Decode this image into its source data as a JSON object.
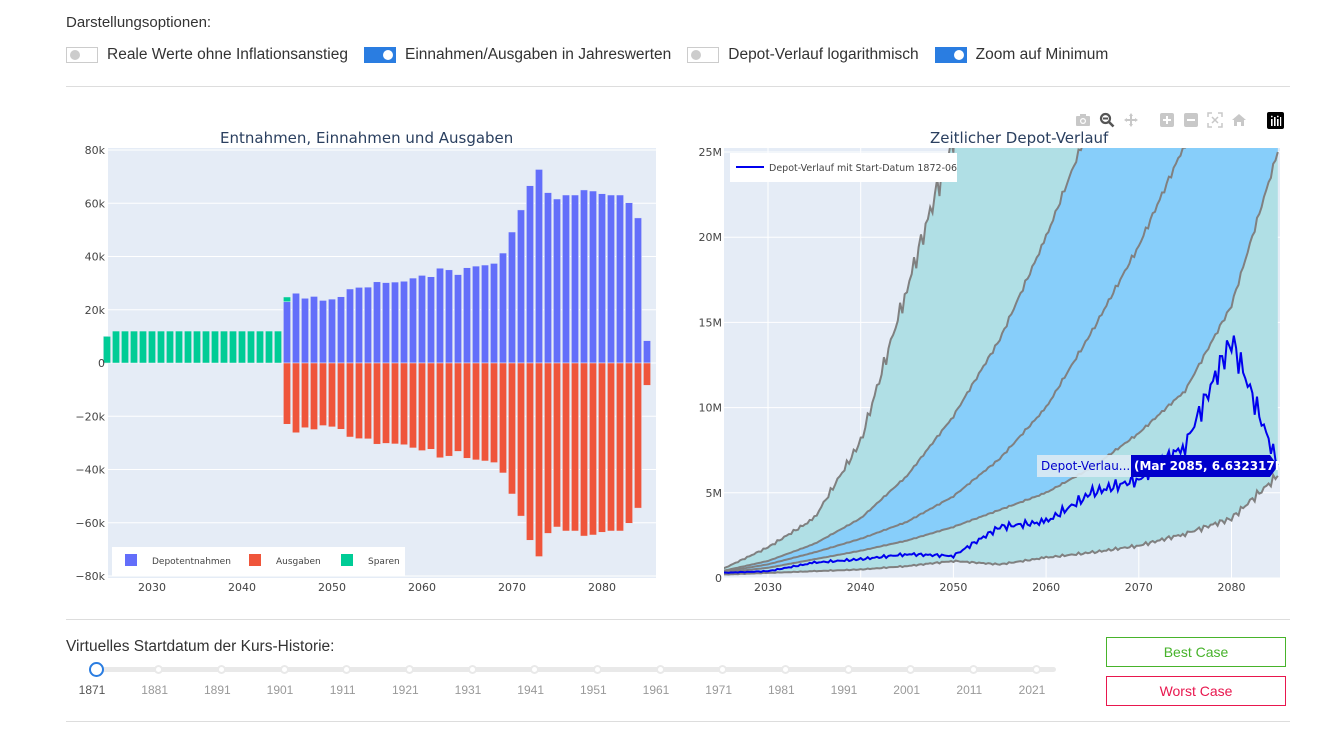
{
  "options": {
    "title": "Darstellungsoptionen:",
    "toggles": [
      {
        "label": "Reale Werte ohne Inflationsanstieg",
        "on": false
      },
      {
        "label": "Einnahmen/Ausgaben in Jahreswerten",
        "on": true
      },
      {
        "label": "Depot-Verlauf logarithmisch",
        "on": false
      },
      {
        "label": "Zoom auf Minimum",
        "on": true
      }
    ]
  },
  "modebar": [
    "camera-icon",
    "zoom-icon",
    "pan-icon",
    "zoom-in-icon",
    "zoom-out-icon",
    "autoscale-icon",
    "home-icon",
    "plotly-logo-icon"
  ],
  "chart_data": [
    {
      "type": "bar",
      "title": "Entnahmen, Einnahmen und Ausgaben",
      "xlabel": "",
      "ylabel": "",
      "ylim": [
        -80000,
        80000
      ],
      "yticks": [
        80000,
        60000,
        40000,
        20000,
        0,
        -20000,
        -40000,
        -60000,
        -80000
      ],
      "ytick_labels": [
        "80k",
        "60k",
        "40k",
        "20k",
        "0",
        "−20k",
        "−40k",
        "−60k",
        "−80k"
      ],
      "xlim": [
        2024.6,
        2085.5
      ],
      "xticks": [
        2030,
        2040,
        2050,
        2060,
        2070,
        2080
      ],
      "xtick_labels": [
        "2030",
        "2040",
        "2050",
        "2060",
        "2070",
        "2080"
      ],
      "legend": {
        "position": "bottom-left",
        "entries": [
          "Depotentnahmen",
          "Ausgaben",
          "Sparen"
        ]
      },
      "colors": {
        "Depotentnahmen": "#636efa",
        "Ausgaben": "#ef553b",
        "Sparen": "#00cc96"
      },
      "barmode": "relative",
      "x": [
        2025,
        2026,
        2027,
        2028,
        2029,
        2030,
        2031,
        2032,
        2033,
        2034,
        2035,
        2036,
        2037,
        2038,
        2039,
        2040,
        2041,
        2042,
        2043,
        2044,
        2045,
        2046,
        2047,
        2048,
        2049,
        2050,
        2051,
        2052,
        2053,
        2054,
        2055,
        2056,
        2057,
        2058,
        2059,
        2060,
        2061,
        2062,
        2063,
        2064,
        2065,
        2066,
        2067,
        2068,
        2069,
        2070,
        2071,
        2072,
        2073,
        2074,
        2075,
        2076,
        2077,
        2078,
        2079,
        2080,
        2081,
        2082,
        2083,
        2084,
        2085
      ],
      "series": [
        {
          "name": "Depotentnahmen",
          "values": [
            0,
            0,
            0,
            0,
            0,
            0,
            0,
            0,
            0,
            0,
            0,
            0,
            0,
            0,
            0,
            0,
            0,
            0,
            0,
            0,
            23000,
            26200,
            24300,
            25000,
            23500,
            24000,
            24900,
            27800,
            28400,
            28500,
            30500,
            30200,
            30400,
            30700,
            31900,
            32900,
            32400,
            35600,
            35000,
            33200,
            35800,
            36400,
            36800,
            37400,
            41300,
            49200,
            57500,
            66600,
            72700,
            64000,
            61600,
            63100,
            63100,
            65000,
            64600,
            63600,
            63100,
            63100,
            60200,
            54500,
            8400
          ]
        },
        {
          "name": "Ausgaben",
          "values": [
            0,
            0,
            0,
            0,
            0,
            0,
            0,
            0,
            0,
            0,
            0,
            0,
            0,
            0,
            0,
            0,
            0,
            0,
            0,
            0,
            -23000,
            -26200,
            -24300,
            -25000,
            -23500,
            -24000,
            -24900,
            -27800,
            -28400,
            -28500,
            -30500,
            -30200,
            -30400,
            -30700,
            -31900,
            -32900,
            -32400,
            -35600,
            -35000,
            -33200,
            -35800,
            -36400,
            -36800,
            -37400,
            -41300,
            -49200,
            -57500,
            -66600,
            -72700,
            -64000,
            -61600,
            -63100,
            -63100,
            -65000,
            -64600,
            -63600,
            -63100,
            -63100,
            -60200,
            -54500,
            -8400
          ]
        },
        {
          "name": "Sparen",
          "values": [
            10000,
            12000,
            12000,
            12000,
            12000,
            12000,
            12000,
            12000,
            12000,
            12000,
            12000,
            12000,
            12000,
            12000,
            12000,
            12000,
            12000,
            12000,
            12000,
            12000,
            1800,
            0,
            0,
            0,
            0,
            0,
            0,
            0,
            0,
            0,
            0,
            0,
            0,
            0,
            0,
            0,
            0,
            0,
            0,
            0,
            0,
            0,
            0,
            0,
            0,
            0,
            0,
            0,
            0,
            0,
            0,
            0,
            0,
            0,
            0,
            0,
            0,
            0,
            0,
            0,
            0
          ]
        }
      ]
    },
    {
      "type": "area",
      "title": "Zeitlicher Depot-Verlauf",
      "xlabel": "",
      "ylabel": "",
      "ylim": [
        0,
        25000000
      ],
      "yticks": [
        0,
        5000000,
        10000000,
        15000000,
        20000000,
        25000000
      ],
      "ytick_labels": [
        "0",
        "5M",
        "10M",
        "15M",
        "20M",
        "25M"
      ],
      "xlim": [
        2025,
        2085.2
      ],
      "xticks": [
        2030,
        2040,
        2050,
        2060,
        2070,
        2080
      ],
      "xtick_labels": [
        "2030",
        "2040",
        "2050",
        "2060",
        "2070",
        "2080"
      ],
      "legend": {
        "position": "top-left",
        "entries": [
          "Depot-Verlauf mit Start-Datum 1872-06"
        ]
      },
      "band_colors": {
        "outer": "#b0dfe5",
        "inner": "#87cefa",
        "band_line": "#808080",
        "main_line": "#0000ee"
      },
      "x": [
        2025,
        2030,
        2035,
        2040,
        2045,
        2050,
        2055,
        2060,
        2065,
        2070,
        2075,
        2080,
        2085
      ],
      "series": [
        {
          "name": "max",
          "values": [
            500000,
            1800000,
            3500000,
            8000000,
            17000000,
            26000000,
            null,
            null,
            null,
            null,
            null,
            null,
            null
          ]
        },
        {
          "name": "upper",
          "values": [
            400000,
            1000000,
            2000000,
            3500000,
            6000000,
            9500000,
            14000000,
            20000000,
            27000000,
            null,
            null,
            null,
            null
          ]
        },
        {
          "name": "mid",
          "values": [
            350000,
            800000,
            1500000,
            2300000,
            3300000,
            4800000,
            7000000,
            10000000,
            14500000,
            19500000,
            25500000,
            null,
            null
          ]
        },
        {
          "name": "lower",
          "values": [
            300000,
            600000,
            1100000,
            1600000,
            2200000,
            3000000,
            4000000,
            5000000,
            6500000,
            8500000,
            11000000,
            16000000,
            25000000
          ]
        },
        {
          "name": "min",
          "values": [
            200000,
            300000,
            400000,
            500000,
            700000,
            1000000,
            800000,
            1200000,
            1500000,
            1900000,
            2600000,
            3500000,
            6000000
          ]
        },
        {
          "name": "Depot-Verlauf mit Start-Datum 1872-06",
          "values": [
            300000,
            400000,
            900000,
            1100000,
            1400000,
            1300000,
            3000000,
            3300000,
            5000000,
            5800000,
            7800000,
            14000000,
            6632317
          ]
        }
      ],
      "hover": {
        "name": "Depot-Verlau...",
        "value": "(Mar 2085, 6.632317M)"
      }
    }
  ],
  "slider": {
    "label": "Virtuelles Startdatum der Kurs-Historie:",
    "value": 1871,
    "min": 1871,
    "max": 2021,
    "marks": [
      "1871",
      "1881",
      "1891",
      "1901",
      "1911",
      "1921",
      "1931",
      "1941",
      "1951",
      "1961",
      "1971",
      "1981",
      "1991",
      "2001",
      "2011",
      "2021"
    ]
  },
  "buttons": {
    "best": "Best Case",
    "worst": "Worst Case"
  }
}
